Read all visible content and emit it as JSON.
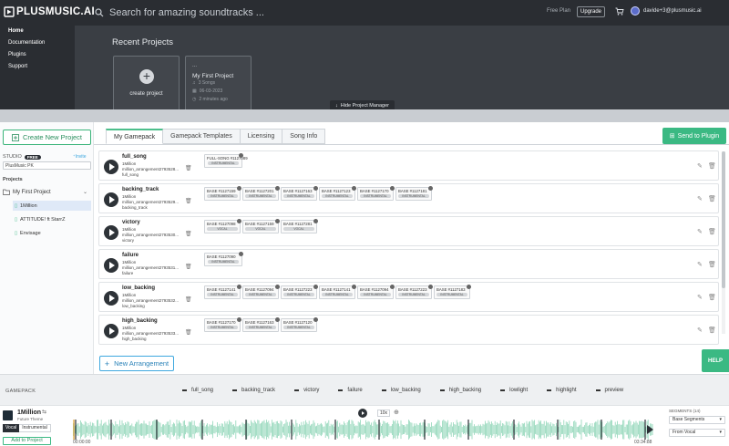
{
  "header": {
    "logo": "PLUSMUSIC.AI",
    "search_placeholder": "Search for amazing soundtracks ...",
    "free_plan": "Free Plan",
    "upgrade": "Upgrade",
    "email": "davide+3@plusmusic.ai"
  },
  "nav": {
    "items": [
      "Home",
      "Documentation",
      "Plugins",
      "Support"
    ]
  },
  "project_manager": {
    "title": "Recent Projects",
    "create_label": "create project",
    "card": {
      "dots": "...",
      "title": "My First Project",
      "songs": "3 Songs",
      "date": "06-03-2023",
      "ago": "2 minutes ago"
    },
    "hide_button": "Hide Project Manager"
  },
  "sidebar": {
    "create_button": "Create New Project",
    "studio_label": "STUDIO",
    "studio_badge": "FREE",
    "invite": "Invite",
    "studio_value": "PlusMusic PK",
    "projects_label": "Projects",
    "project_name": "My First Project",
    "items": [
      "1Million",
      "ATTITUDE! ft StarrZ",
      "Envisage"
    ]
  },
  "tabs": [
    "My Gamepack",
    "Gamepack Templates",
    "Licensing",
    "Song Info"
  ],
  "send_plugin": "Send to Plugin",
  "rows": [
    {
      "name": "full_song",
      "sub1": "1Million",
      "sub2": "million_arrangement2793528...",
      "sub3": "full_song",
      "chips": [
        {
          "title": "FULL-SONG #1127089",
          "tag": "INSTRUMENTAL"
        }
      ]
    },
    {
      "name": "backing_track",
      "sub1": "1Million",
      "sub2": "million_arrangement2793529...",
      "sub3": "backing_track",
      "chips": [
        {
          "title": "BASE #1127159",
          "tag": "INSTRUMENTAL"
        },
        {
          "title": "BASE #1127201",
          "tag": "INSTRUMENTAL"
        },
        {
          "title": "BASE #1127163",
          "tag": "INSTRUMENTAL"
        },
        {
          "title": "BASE #1127123",
          "tag": "INSTRUMENTAL"
        },
        {
          "title": "BASE #1127170",
          "tag": "INSTRUMENTAL"
        },
        {
          "title": "BASE #1127181",
          "tag": "INSTRUMENTAL"
        }
      ]
    },
    {
      "name": "victory",
      "sub1": "1Million",
      "sub2": "million_arrangement2793530...",
      "sub3": "victory",
      "chips": [
        {
          "title": "BASE #1127098",
          "tag": "VOCAL"
        },
        {
          "title": "BASE #1127159",
          "tag": "VOCAL"
        },
        {
          "title": "BASE #1127281",
          "tag": "VOCAL"
        }
      ]
    },
    {
      "name": "failure",
      "sub1": "1Million",
      "sub2": "million_arrangement2793531...",
      "sub3": "failure",
      "chips": [
        {
          "title": "BASE #1127090",
          "tag": "INSTRUMENTAL"
        }
      ]
    },
    {
      "name": "low_backing",
      "sub1": "1Million",
      "sub2": "million_arrangement2793532...",
      "sub3": "low_backing",
      "chips": [
        {
          "title": "BASE #1127141",
          "tag": "INSTRUMENTAL"
        },
        {
          "title": "BASE #1127094",
          "tag": "INSTRUMENTAL"
        },
        {
          "title": "BASE #1127223",
          "tag": "INSTRUMENTAL"
        },
        {
          "title": "BASE #1127141",
          "tag": "INSTRUMENTAL"
        },
        {
          "title": "BASE #1127094",
          "tag": "INSTRUMENTAL"
        },
        {
          "title": "BASE #1127223",
          "tag": "INSTRUMENTAL"
        },
        {
          "title": "BASE #1127183",
          "tag": "INSTRUMENTAL"
        }
      ]
    },
    {
      "name": "high_backing",
      "sub1": "1Million",
      "sub2": "million_arrangement2793533...",
      "sub3": "high_backing",
      "chips": [
        {
          "title": "BASE #1127170",
          "tag": "INSTRUMENTAL"
        },
        {
          "title": "BASE #1127163",
          "tag": "INSTRUMENTAL"
        },
        {
          "title": "BASE #1127120",
          "tag": "INSTRUMENTAL"
        }
      ]
    }
  ],
  "new_arrangement": "New Arrangement",
  "help": "HELP",
  "gamepack": {
    "label": "GAMEPACK",
    "items": [
      "full_song",
      "backing_track",
      "victory",
      "failure",
      "low_backing",
      "high_backing",
      "lowlight",
      "highlight",
      "preview"
    ]
  },
  "player": {
    "title": "1Million",
    "subtitle": "Future Theme",
    "vocal": "Vocal",
    "instrumental": "Instrumental",
    "add_to_project": "Add to Project",
    "zoom": "10x",
    "time_start": "00:00:00",
    "time_end": "03:34:88",
    "segments_label": "SEGMENTS (14)",
    "segments_select": "Base Segments",
    "from_select": "From Vocal"
  },
  "colors": {
    "accent": "#3bb983",
    "wave": "#8fd6b8",
    "dark": "#2a2d32",
    "link": "#3ea8df"
  }
}
